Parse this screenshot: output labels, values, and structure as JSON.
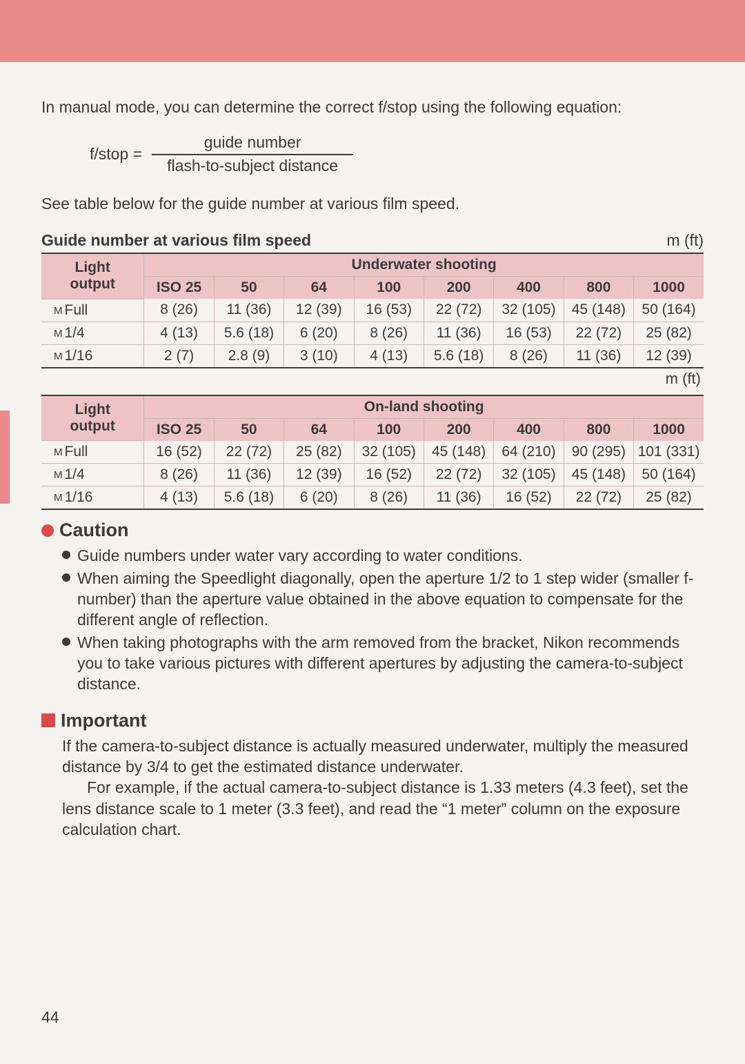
{
  "colors": {
    "band": "#ea8a8a",
    "header_bg": "#eec3c6",
    "cell_border": "#c7b8b6",
    "rule": "#3a3a3a",
    "bullet": "#d94a4a",
    "page_bg": "#f5f2ef",
    "text": "#3a3a3a"
  },
  "intro": "In manual mode, you can determine the correct f/stop using the following equation:",
  "equation": {
    "lhs": "f/stop  =",
    "numerator": "guide number",
    "denominator": "flash-to-subject distance"
  },
  "note": "See table below for the guide number at various film speed.",
  "table_title": "Guide number at various film speed",
  "unit_label": "m (ft)",
  "light_output_label": "Light output",
  "iso_columns": [
    "ISO 25",
    "50",
    "64",
    "100",
    "200",
    "400",
    "800",
    "1000"
  ],
  "tables": [
    {
      "heading": "Underwater shooting",
      "rows": [
        {
          "label": "Full",
          "cells": [
            "8 (26)",
            "11 (36)",
            "12 (39)",
            "16 (53)",
            "22 (72)",
            "32 (105)",
            "45 (148)",
            "50 (164)"
          ]
        },
        {
          "label": "1/4",
          "cells": [
            "4 (13)",
            "5.6 (18)",
            "6 (20)",
            "8 (26)",
            "11 (36)",
            "16 (53)",
            "22 (72)",
            "25 (82)"
          ]
        },
        {
          "label": "1/16",
          "cells": [
            "2 (7)",
            "2.8 (9)",
            "3 (10)",
            "4 (13)",
            "5.6 (18)",
            "8 (26)",
            "11 (36)",
            "12 (39)"
          ]
        }
      ]
    },
    {
      "heading": "On-land shooting",
      "rows": [
        {
          "label": "Full",
          "cells": [
            "16 (52)",
            "22 (72)",
            "25 (82)",
            "32 (105)",
            "45 (148)",
            "64 (210)",
            "90 (295)",
            "101 (331)"
          ]
        },
        {
          "label": "1/4",
          "cells": [
            "8 (26)",
            "11 (36)",
            "12 (39)",
            "16 (52)",
            "22 (72)",
            "32 (105)",
            "45 (148)",
            "50 (164)"
          ]
        },
        {
          "label": "1/16",
          "cells": [
            "4 (13)",
            "5.6 (18)",
            "6 (20)",
            "8 (26)",
            "11 (36)",
            "16 (52)",
            "22 (72)",
            "25 (82)"
          ]
        }
      ]
    }
  ],
  "caution": {
    "title": "Caution",
    "items": [
      "Guide numbers under water vary according to water conditions.",
      "When aiming the Speedlight diagonally, open the aperture 1/2 to 1 step wider (smaller f-number) than the aperture value obtained in the above equation to compensate for the different angle of reflection.",
      "When taking photographs with the arm removed from the bracket, Nikon recommends you to take various pictures with different apertures by adjusting the camera-to-subject distance."
    ]
  },
  "important": {
    "title": "Important",
    "p1": "If the camera-to-subject distance is actually measured underwater, multiply the measured distance by 3/4 to get the estimated distance underwater.",
    "p2": "For example, if the actual camera-to-subject distance is 1.33 meters (4.3 feet), set the lens distance scale to 1 meter (3.3 feet), and read the “1 meter” column on the exposure calculation chart."
  },
  "page_number": "44",
  "m_prefix": "M"
}
